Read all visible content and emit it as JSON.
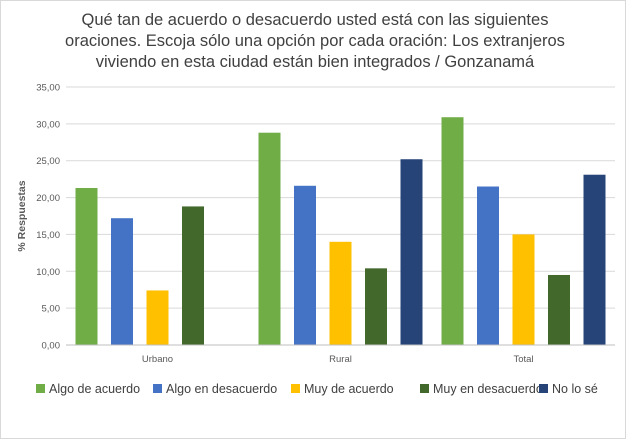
{
  "chart_data": {
    "type": "bar",
    "title_lines": [
      "Qué tan de acuerdo o desacuerdo usted está con las siguientes",
      "oraciones.  Escoja sólo una opción por cada oración: Los extranjeros",
      "viviendo en esta ciudad están bien integrados / Gonzanamá"
    ],
    "xlabel": "",
    "ylabel": "% Respuestas",
    "ylim": [
      0,
      35
    ],
    "yticks": [
      "0,00",
      "5,00",
      "10,00",
      "15,00",
      "20,00",
      "25,00",
      "30,00",
      "35,00"
    ],
    "grid": true,
    "legend_position": "bottom",
    "categories": [
      "Urbano",
      "Rural",
      "Total"
    ],
    "series": [
      {
        "name": "Algo de acuerdo",
        "color": "#70ad47",
        "values": [
          21.3,
          28.8,
          30.9
        ]
      },
      {
        "name": "Algo en desacuerdo",
        "color": "#4472c4",
        "values": [
          17.2,
          21.6,
          21.5
        ]
      },
      {
        "name": "Muy de acuerdo",
        "color": "#ffc000",
        "values": [
          7.4,
          14.0,
          15.0
        ]
      },
      {
        "name": "Muy en desacuerdo",
        "color": "#43682b",
        "values": [
          18.8,
          10.4,
          9.5
        ]
      },
      {
        "name": "No lo sé",
        "color": "#264478",
        "values": [
          null,
          25.2,
          23.1
        ]
      }
    ]
  }
}
